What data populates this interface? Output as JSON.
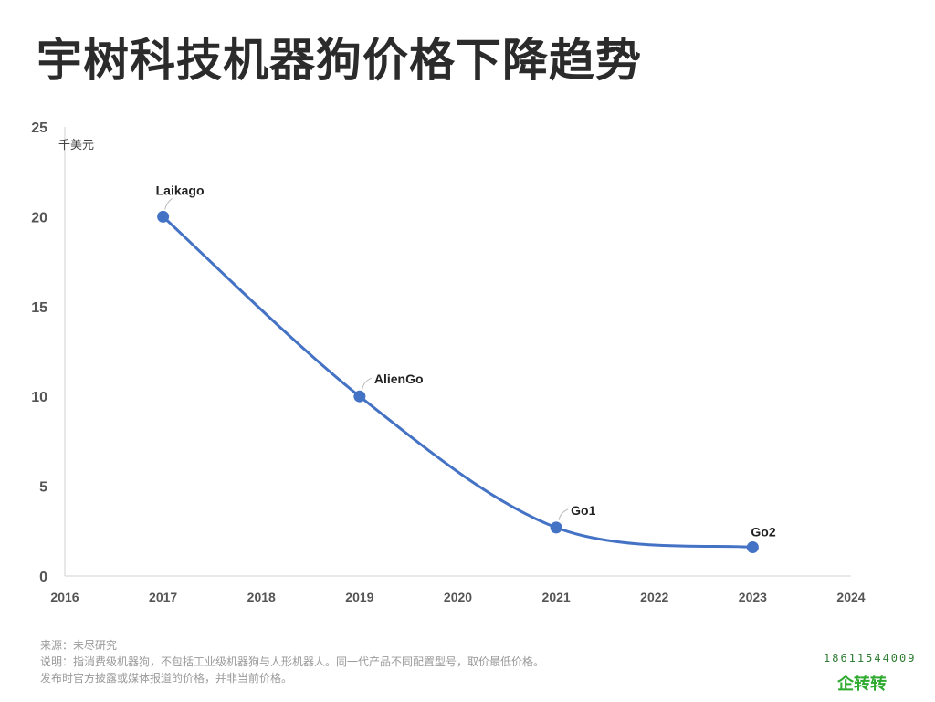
{
  "title": "宇树科技机器狗价格下降趋势",
  "chart_data": {
    "type": "line",
    "unit_label": "千美元",
    "xlim": [
      2016,
      2024
    ],
    "ylim": [
      0,
      25
    ],
    "x_ticks": [
      2016,
      2017,
      2018,
      2019,
      2020,
      2021,
      2022,
      2023,
      2024
    ],
    "y_ticks": [
      0,
      5,
      10,
      15,
      20,
      25
    ],
    "grid": false,
    "smooth": true,
    "series": [
      {
        "color": "#4472c4",
        "points": [
          {
            "x": 2017,
            "y": 20,
            "label": "Laikago"
          },
          {
            "x": 2019,
            "y": 10,
            "label": "AlienGo"
          },
          {
            "x": 2021,
            "y": 2.7,
            "label": "Go1"
          },
          {
            "x": 2023,
            "y": 1.6,
            "label": "Go2"
          }
        ]
      }
    ]
  },
  "notes": {
    "source": "来源：未尽研究",
    "line1": "说明：指消费级机器狗，不包括工业级机器狗与人形机器人。同一代产品不同配置型号，取价最低价格。",
    "line2": "发布时官方披露或媒体报道的价格，并非当前价格。"
  },
  "watermark": {
    "phone": "18611544009",
    "brand": "企转转"
  }
}
